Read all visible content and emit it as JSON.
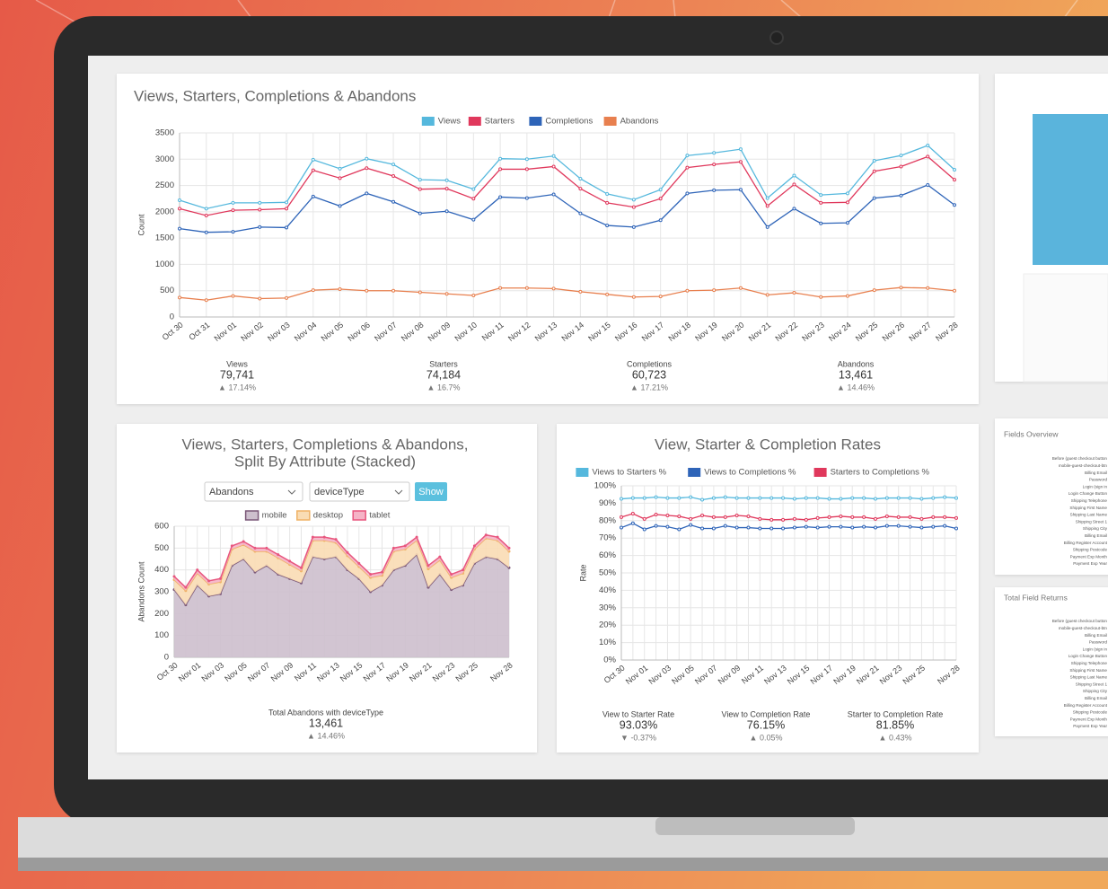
{
  "chart_data": [
    {
      "type": "line",
      "title": "Views, Starters, Completions & Abandons",
      "y_label": "Count",
      "categories": [
        "Oct 30",
        "Oct 31",
        "Nov 01",
        "Nov 02",
        "Nov 03",
        "Nov 04",
        "Nov 05",
        "Nov 06",
        "Nov 07",
        "Nov 08",
        "Nov 09",
        "Nov 10",
        "Nov 11",
        "Nov 12",
        "Nov 13",
        "Nov 14",
        "Nov 15",
        "Nov 16",
        "Nov 17",
        "Nov 18",
        "Nov 19",
        "Nov 20",
        "Nov 21",
        "Nov 22",
        "Nov 23",
        "Nov 24",
        "Nov 25",
        "Nov 26",
        "Nov 27",
        "Nov 28"
      ],
      "series": [
        {
          "name": "Views",
          "color": "#55b8dd",
          "values": [
            2220,
            2060,
            2170,
            2170,
            2180,
            2990,
            2820,
            3010,
            2900,
            2610,
            2600,
            2430,
            3010,
            3000,
            3060,
            2630,
            2340,
            2230,
            2420,
            3070,
            3120,
            3190,
            2260,
            2690,
            2320,
            2350,
            2970,
            3070,
            3260,
            2800
          ]
        },
        {
          "name": "Starters",
          "color": "#e0385c",
          "values": [
            2060,
            1930,
            2030,
            2040,
            2060,
            2790,
            2640,
            2830,
            2680,
            2430,
            2440,
            2250,
            2810,
            2810,
            2860,
            2440,
            2170,
            2090,
            2250,
            2840,
            2900,
            2950,
            2110,
            2520,
            2170,
            2180,
            2770,
            2860,
            3050,
            2610
          ]
        },
        {
          "name": "Completions",
          "color": "#2e64b8",
          "values": [
            1680,
            1610,
            1620,
            1710,
            1700,
            2290,
            2110,
            2350,
            2190,
            1970,
            2010,
            1850,
            2280,
            2260,
            2330,
            1970,
            1740,
            1710,
            1840,
            2350,
            2410,
            2420,
            1710,
            2060,
            1780,
            1790,
            2260,
            2310,
            2510,
            2130
          ]
        },
        {
          "name": "Abandons",
          "color": "#e8804f",
          "values": [
            370,
            320,
            400,
            350,
            360,
            510,
            530,
            500,
            500,
            470,
            440,
            410,
            550,
            550,
            540,
            480,
            430,
            380,
            390,
            500,
            510,
            550,
            420,
            460,
            380,
            400,
            510,
            560,
            550,
            500
          ]
        }
      ],
      "ylim": [
        0,
        3500
      ],
      "yticks": [
        0,
        500,
        1000,
        1500,
        2000,
        2500,
        3000,
        3500
      ],
      "grid": true,
      "legend": "top",
      "summary": [
        {
          "label": "Views",
          "value": "79,741",
          "change": "▲ 17.14%"
        },
        {
          "label": "Starters",
          "value": "74,184",
          "change": "▲ 16.7%"
        },
        {
          "label": "Completions",
          "value": "60,723",
          "change": "▲ 17.21%"
        },
        {
          "label": "Abandons",
          "value": "13,461",
          "change": "▲ 14.46%"
        }
      ]
    },
    {
      "type": "stacked_area",
      "title": [
        "Views, Starters, Completions & Abandons,",
        "Split By Attribute (Stacked)"
      ],
      "controls": {
        "metric": "Abandons",
        "attribute": "deviceType",
        "button": "Show"
      },
      "y_label": "Abandons Count",
      "categories": [
        "Oct 30",
        null,
        "Nov 01",
        null,
        "Nov 03",
        null,
        "Nov 05",
        null,
        "Nov 07",
        null,
        "Nov 09",
        null,
        "Nov 11",
        null,
        "Nov 13",
        null,
        "Nov 15",
        null,
        "Nov 17",
        null,
        "Nov 19",
        null,
        "Nov 21",
        null,
        "Nov 23",
        null,
        "Nov 25",
        null,
        null,
        "Nov 28"
      ],
      "series": [
        {
          "name": "mobile",
          "color": "#7b5878",
          "fill": "#cdbfcd",
          "values": [
            310,
            240,
            330,
            280,
            290,
            420,
            450,
            390,
            420,
            380,
            360,
            340,
            460,
            450,
            460,
            400,
            360,
            300,
            330,
            400,
            420,
            470,
            320,
            380,
            310,
            330,
            430,
            460,
            450,
            410
          ]
        },
        {
          "name": "desktop",
          "color": "#f0b266",
          "fill": "#f9dcb4",
          "values": [
            45,
            65,
            55,
            55,
            55,
            75,
            65,
            95,
            65,
            75,
            65,
            55,
            75,
            85,
            65,
            65,
            55,
            65,
            45,
            85,
            75,
            65,
            85,
            65,
            55,
            55,
            65,
            85,
            85,
            75
          ]
        },
        {
          "name": "tablet",
          "color": "#e8567e",
          "fill": "#f5b3c6",
          "values": [
            15,
            15,
            15,
            15,
            15,
            15,
            15,
            15,
            15,
            15,
            15,
            15,
            15,
            15,
            15,
            15,
            15,
            15,
            15,
            15,
            15,
            15,
            15,
            15,
            15,
            15,
            15,
            15,
            15,
            15
          ]
        }
      ],
      "ylim": [
        0,
        600
      ],
      "yticks": [
        0,
        100,
        200,
        300,
        400,
        500,
        600
      ],
      "grid": true,
      "legend": "top",
      "summary": [
        {
          "label": "Total Abandons with deviceType",
          "value": "13,461",
          "change": "▲ 14.46%"
        }
      ]
    },
    {
      "type": "line",
      "title": "View, Starter & Completion Rates",
      "y_label": "Rate",
      "categories": [
        "Oct 30",
        null,
        "Nov 01",
        null,
        "Nov 03",
        null,
        "Nov 05",
        null,
        "Nov 07",
        null,
        "Nov 09",
        null,
        "Nov 11",
        null,
        "Nov 13",
        null,
        "Nov 15",
        null,
        "Nov 17",
        null,
        "Nov 19",
        null,
        "Nov 21",
        null,
        "Nov 23",
        null,
        "Nov 25",
        null,
        null,
        "Nov 28"
      ],
      "series": [
        {
          "name": "Views to Starters %",
          "color": "#55b8dd",
          "values": [
            92.5,
            93,
            93,
            93.5,
            93,
            93,
            93.5,
            92,
            93,
            93.5,
            93,
            93,
            93,
            93,
            93,
            92.5,
            93,
            93,
            92.5,
            92.5,
            93,
            93,
            92.5,
            93,
            93,
            93,
            92.5,
            93,
            93.5,
            93
          ]
        },
        {
          "name": "Views to Completions %",
          "color": "#2e64b8",
          "values": [
            76,
            78.5,
            75,
            77,
            76.5,
            75,
            77.5,
            75.5,
            75.5,
            77,
            76,
            76,
            75.5,
            75.5,
            75.5,
            76,
            76.5,
            76,
            76.5,
            76.5,
            76,
            76.5,
            76,
            77,
            77,
            76.5,
            76,
            76.5,
            77,
            75.5
          ]
        },
        {
          "name": "Starters to Completions %",
          "color": "#e0385c",
          "values": [
            82,
            84,
            81,
            83.5,
            83,
            82.5,
            81,
            83,
            82,
            82,
            83,
            82.5,
            81,
            80.5,
            80.5,
            81,
            80.5,
            81.5,
            82,
            82.5,
            82,
            82,
            81,
            82.5,
            82,
            82,
            81,
            82,
            82,
            81.5
          ]
        }
      ],
      "ylim": [
        0,
        100
      ],
      "yticks": [
        {
          "value": 0,
          "label": "0%"
        },
        {
          "value": 10,
          "label": "10%"
        },
        {
          "value": 20,
          "label": "20%"
        },
        {
          "value": 30,
          "label": "30%"
        },
        {
          "value": 40,
          "label": "40%"
        },
        {
          "value": 50,
          "label": "50%"
        },
        {
          "value": 60,
          "label": "60%"
        },
        {
          "value": 70,
          "label": "70%"
        },
        {
          "value": 80,
          "label": "80%"
        },
        {
          "value": 90,
          "label": "90%"
        },
        {
          "value": 100,
          "label": "100%"
        }
      ],
      "grid": true,
      "legend": "top",
      "summary": [
        {
          "label": "View to Starter Rate",
          "value": "93.03%",
          "change": "▼ -0.37%"
        },
        {
          "label": "View to Completion Rate",
          "value": "76.15%",
          "change": "▲ 0.05%"
        },
        {
          "label": "Starter to Completion Rate",
          "value": "81.85%",
          "change": "▲ 0.43%"
        }
      ]
    }
  ],
  "side_panels": [
    {
      "title": "Fields Overview",
      "fields": [
        "Before (guest checkout button",
        "mobile-guest-checkout-btn",
        "Billing Email",
        "Password",
        "Login (sign in",
        "Login Change Button",
        "Shipping Telephone",
        "Shipping First Name",
        "Shipping Last Name",
        "Shipping Street 1",
        "Shipping City",
        "Billing Email",
        "Billing Register Account",
        "Shipping Postcode",
        "Payment Exp Month",
        "Payment Exp Year"
      ]
    },
    {
      "title": "Total Field Returns",
      "fields": [
        "Before (guest checkout button",
        "mobile-guest-checkout-btn",
        "Billing Email",
        "Password",
        "Login (sign in",
        "Login Change Button",
        "Shipping Telephone",
        "Shipping First Name",
        "Shipping Last Name",
        "Shipping Street 1",
        "Shipping City",
        "Billing Email",
        "Billing Register Account",
        "Shipping Postcode",
        "Payment Exp Month",
        "Payment Exp Year"
      ]
    }
  ]
}
